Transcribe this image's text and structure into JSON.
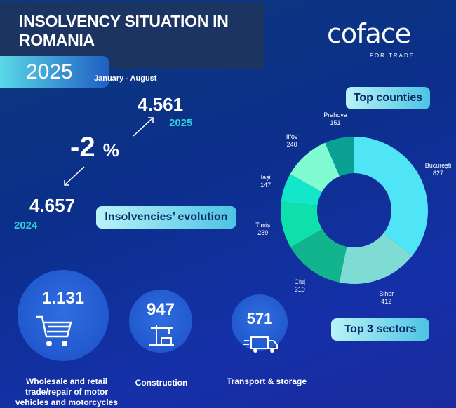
{
  "header": {
    "title_line1": "INSOLVENCY SITUATION IN",
    "title_line2": "ROMANIA",
    "year": "2025",
    "period": "January - August",
    "logo": "coface",
    "logo_tagline": "FOR TRADE"
  },
  "evolution": {
    "label": "Insolvencies’ evolution",
    "current_value": "4.561",
    "current_year": "2025",
    "previous_value": "4.657",
    "previous_year": "2024",
    "change": "-2",
    "change_unit": "%"
  },
  "chart_data": {
    "type": "pie",
    "subtype": "donut",
    "title": "Top counties",
    "categories": [
      "București",
      "Bihor",
      "Cluj",
      "Timiș",
      "Iași",
      "Ilfov",
      "Prahova"
    ],
    "values": [
      827,
      412,
      310,
      239,
      147,
      240,
      151
    ],
    "colors": [
      "#4fe5f6",
      "#7edcd5",
      "#12b48d",
      "#0fe0aa",
      "#14e7c9",
      "#80fbd2",
      "#0aa093"
    ]
  },
  "sectors": {
    "label": "Top 3 sectors",
    "items": [
      {
        "value": "1.131",
        "name": "Wholesale and retail trade/repair of motor vehicles and motorcycles",
        "icon": "shopping-cart-icon"
      },
      {
        "value": "947",
        "name": "Construction",
        "icon": "crane-icon"
      },
      {
        "value": "571",
        "name": "Transport & storage",
        "icon": "truck-icon"
      }
    ]
  }
}
